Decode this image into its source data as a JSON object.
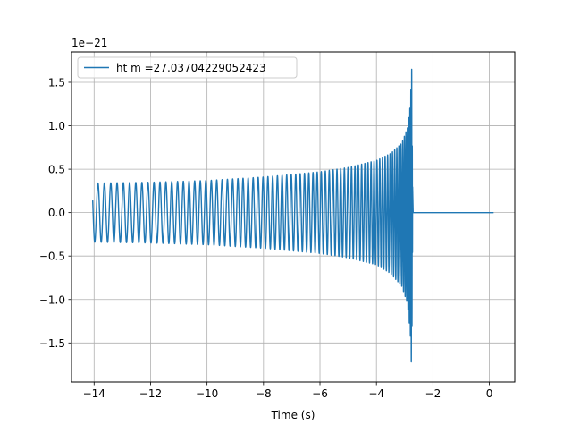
{
  "chart_data": {
    "type": "line",
    "title": "",
    "xlabel": "Time (s)",
    "ylabel": "",
    "y_offset_label": "1e−21",
    "xlim": [
      -14.8,
      0.9
    ],
    "ylim": [
      -1.95,
      1.85
    ],
    "x_ticks": [
      -14,
      -12,
      -10,
      -8,
      -6,
      -4,
      -2,
      0
    ],
    "x_tick_labels": [
      "−14",
      "−12",
      "−10",
      "−8",
      "−6",
      "−4",
      "−2",
      "0"
    ],
    "y_ticks": [
      -1.5,
      -1.0,
      -0.5,
      0.0,
      0.5,
      1.0,
      1.5
    ],
    "y_tick_labels": [
      "−1.5",
      "−1.0",
      "−0.5",
      "0.0",
      "0.5",
      "1.0",
      "1.5"
    ],
    "grid": true,
    "legend_position": "top-left",
    "series": [
      {
        "name": "ht m =27.03704229052423",
        "color": "#1f77b4",
        "x_range": [
          -14.05,
          0.15
        ],
        "merger_time": -2.75,
        "envelope": {
          "x": [
            -14.05,
            -12,
            -10,
            -8,
            -6,
            -5,
            -4,
            -3.5,
            -3.1,
            -2.9,
            -2.8,
            -2.76,
            -2.75,
            -2.72,
            -2.7,
            -2.6,
            0.15
          ],
          "upper": [
            0.34,
            0.35,
            0.37,
            0.41,
            0.47,
            0.52,
            0.6,
            0.68,
            0.8,
            0.98,
            1.25,
            1.6,
            1.66,
            0.3,
            0.0,
            0.0,
            0.0
          ],
          "lower": [
            -0.34,
            -0.35,
            -0.37,
            -0.41,
            -0.47,
            -0.52,
            -0.6,
            -0.7,
            -0.85,
            -1.05,
            -1.4,
            -1.78,
            -1.8,
            -0.3,
            0.0,
            0.0,
            0.0
          ]
        }
      }
    ]
  }
}
